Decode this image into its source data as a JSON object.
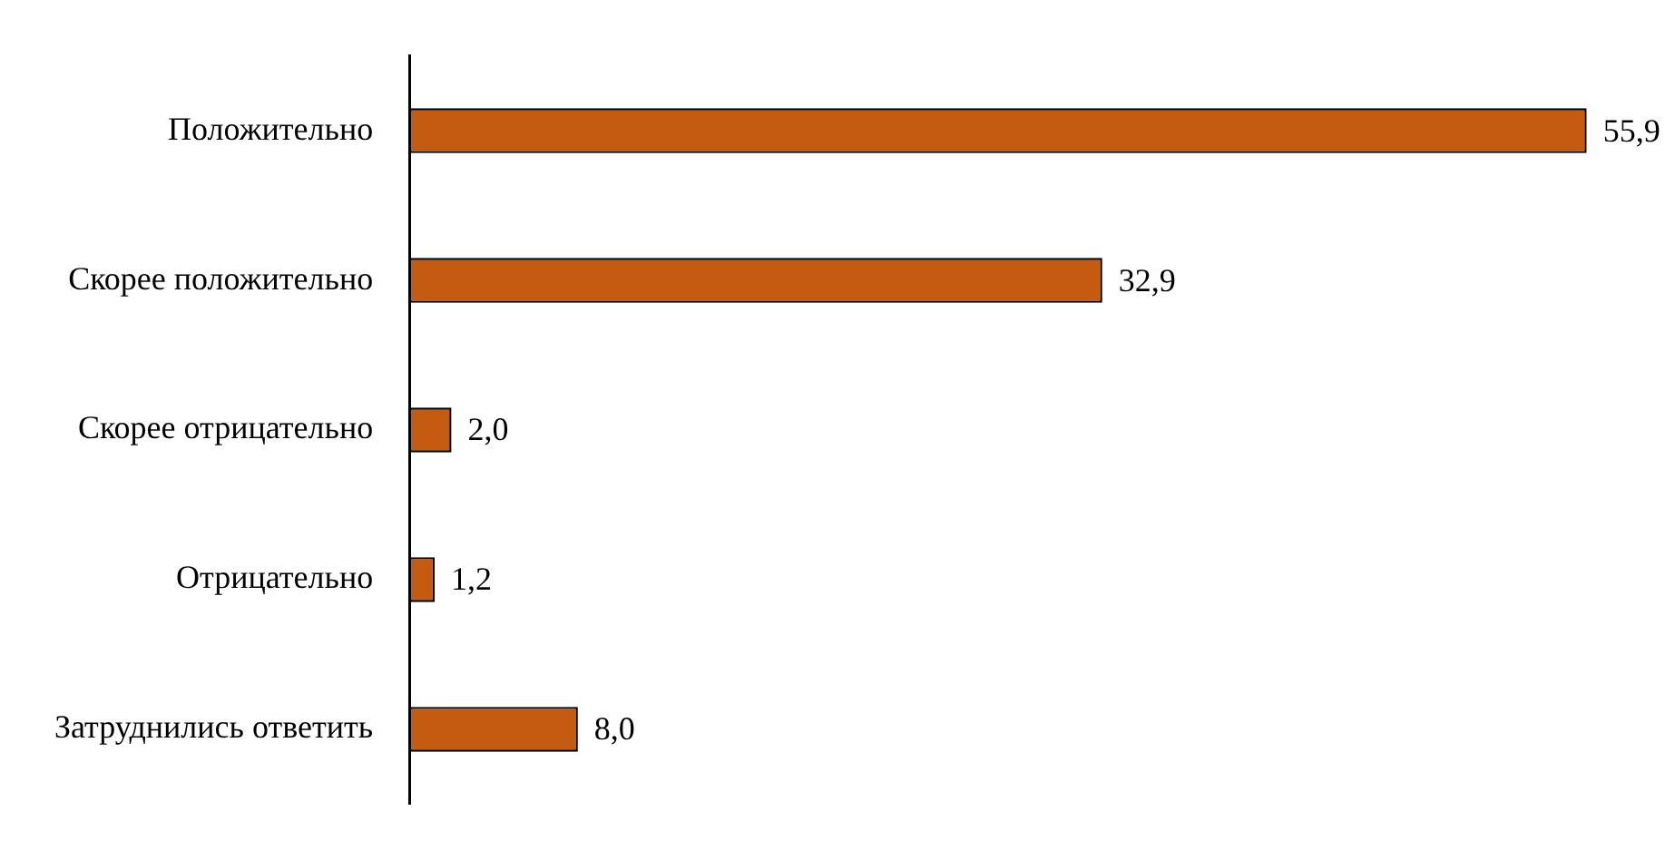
{
  "chart_data": {
    "type": "bar",
    "orientation": "horizontal",
    "categories": [
      "Положительно",
      "Скорее положительно",
      "Скорее отрицательно",
      "Отрицательно",
      "Затруднились ответить"
    ],
    "values": [
      55.9,
      32.9,
      2.0,
      1.2,
      8.0
    ],
    "value_labels": [
      "55,9",
      "32,9",
      "2,0",
      "1,2",
      "8,0"
    ],
    "color": "#c55a11",
    "legend": false
  }
}
